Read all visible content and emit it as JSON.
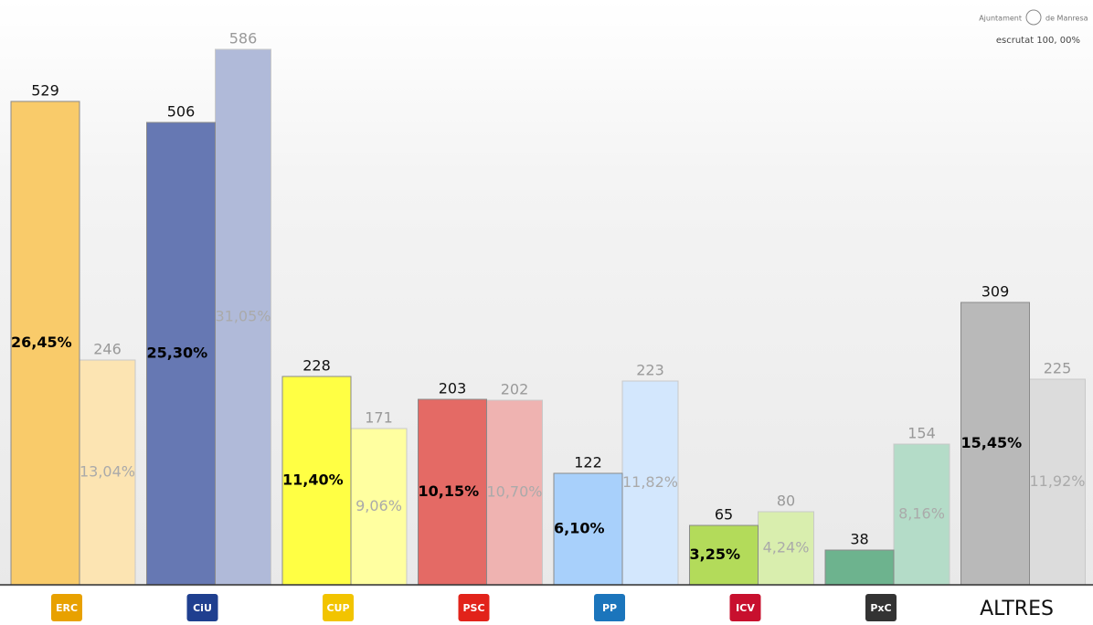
{
  "chart_data": {
    "type": "bar",
    "header": {
      "institution_left": "Ajuntament",
      "institution_right": "de Manresa",
      "status": "escrutat 100, 00%"
    },
    "categories": [
      "ERC",
      "CiU",
      "CUP",
      "PSC",
      "PP",
      "ICV",
      "PxC",
      "ALTRES"
    ],
    "logo_colors": [
      "#e8a100",
      "#1f3f8f",
      "#f2c400",
      "#e2231a",
      "#1b75bc",
      "#c8102e",
      "#333333",
      null
    ],
    "series": [
      {
        "values": [
          529,
          506,
          228,
          203,
          122,
          65,
          38,
          309
        ],
        "colors": [
          "#f9cb6a",
          "#6678b3",
          "#ffff44",
          "#e46a65",
          "#a8d0fb",
          "#b3db5a",
          "#6db38e",
          "#b9b9b9"
        ],
        "share_labels": [
          "26,45%",
          "25,30%",
          "11,40%",
          "10,15%",
          "6,10%",
          "3,25%",
          null,
          "15,45%"
        ]
      },
      {
        "values": [
          246,
          586,
          171,
          202,
          223,
          80,
          154,
          225
        ],
        "colors": [
          "#fce4b2",
          "#b0bad9",
          "#ffffa0",
          "#efb3b1",
          "#d3e7fd",
          "#d9eeae",
          "#b4dcc8",
          "#dcdcdc"
        ],
        "share_labels": [
          "13,04%",
          "31,05%",
          "9,06%",
          "10,70%",
          "11,82%",
          "4,24%",
          "8,16%",
          "11,92%"
        ]
      }
    ],
    "ylim": [
      0,
      615
    ]
  }
}
